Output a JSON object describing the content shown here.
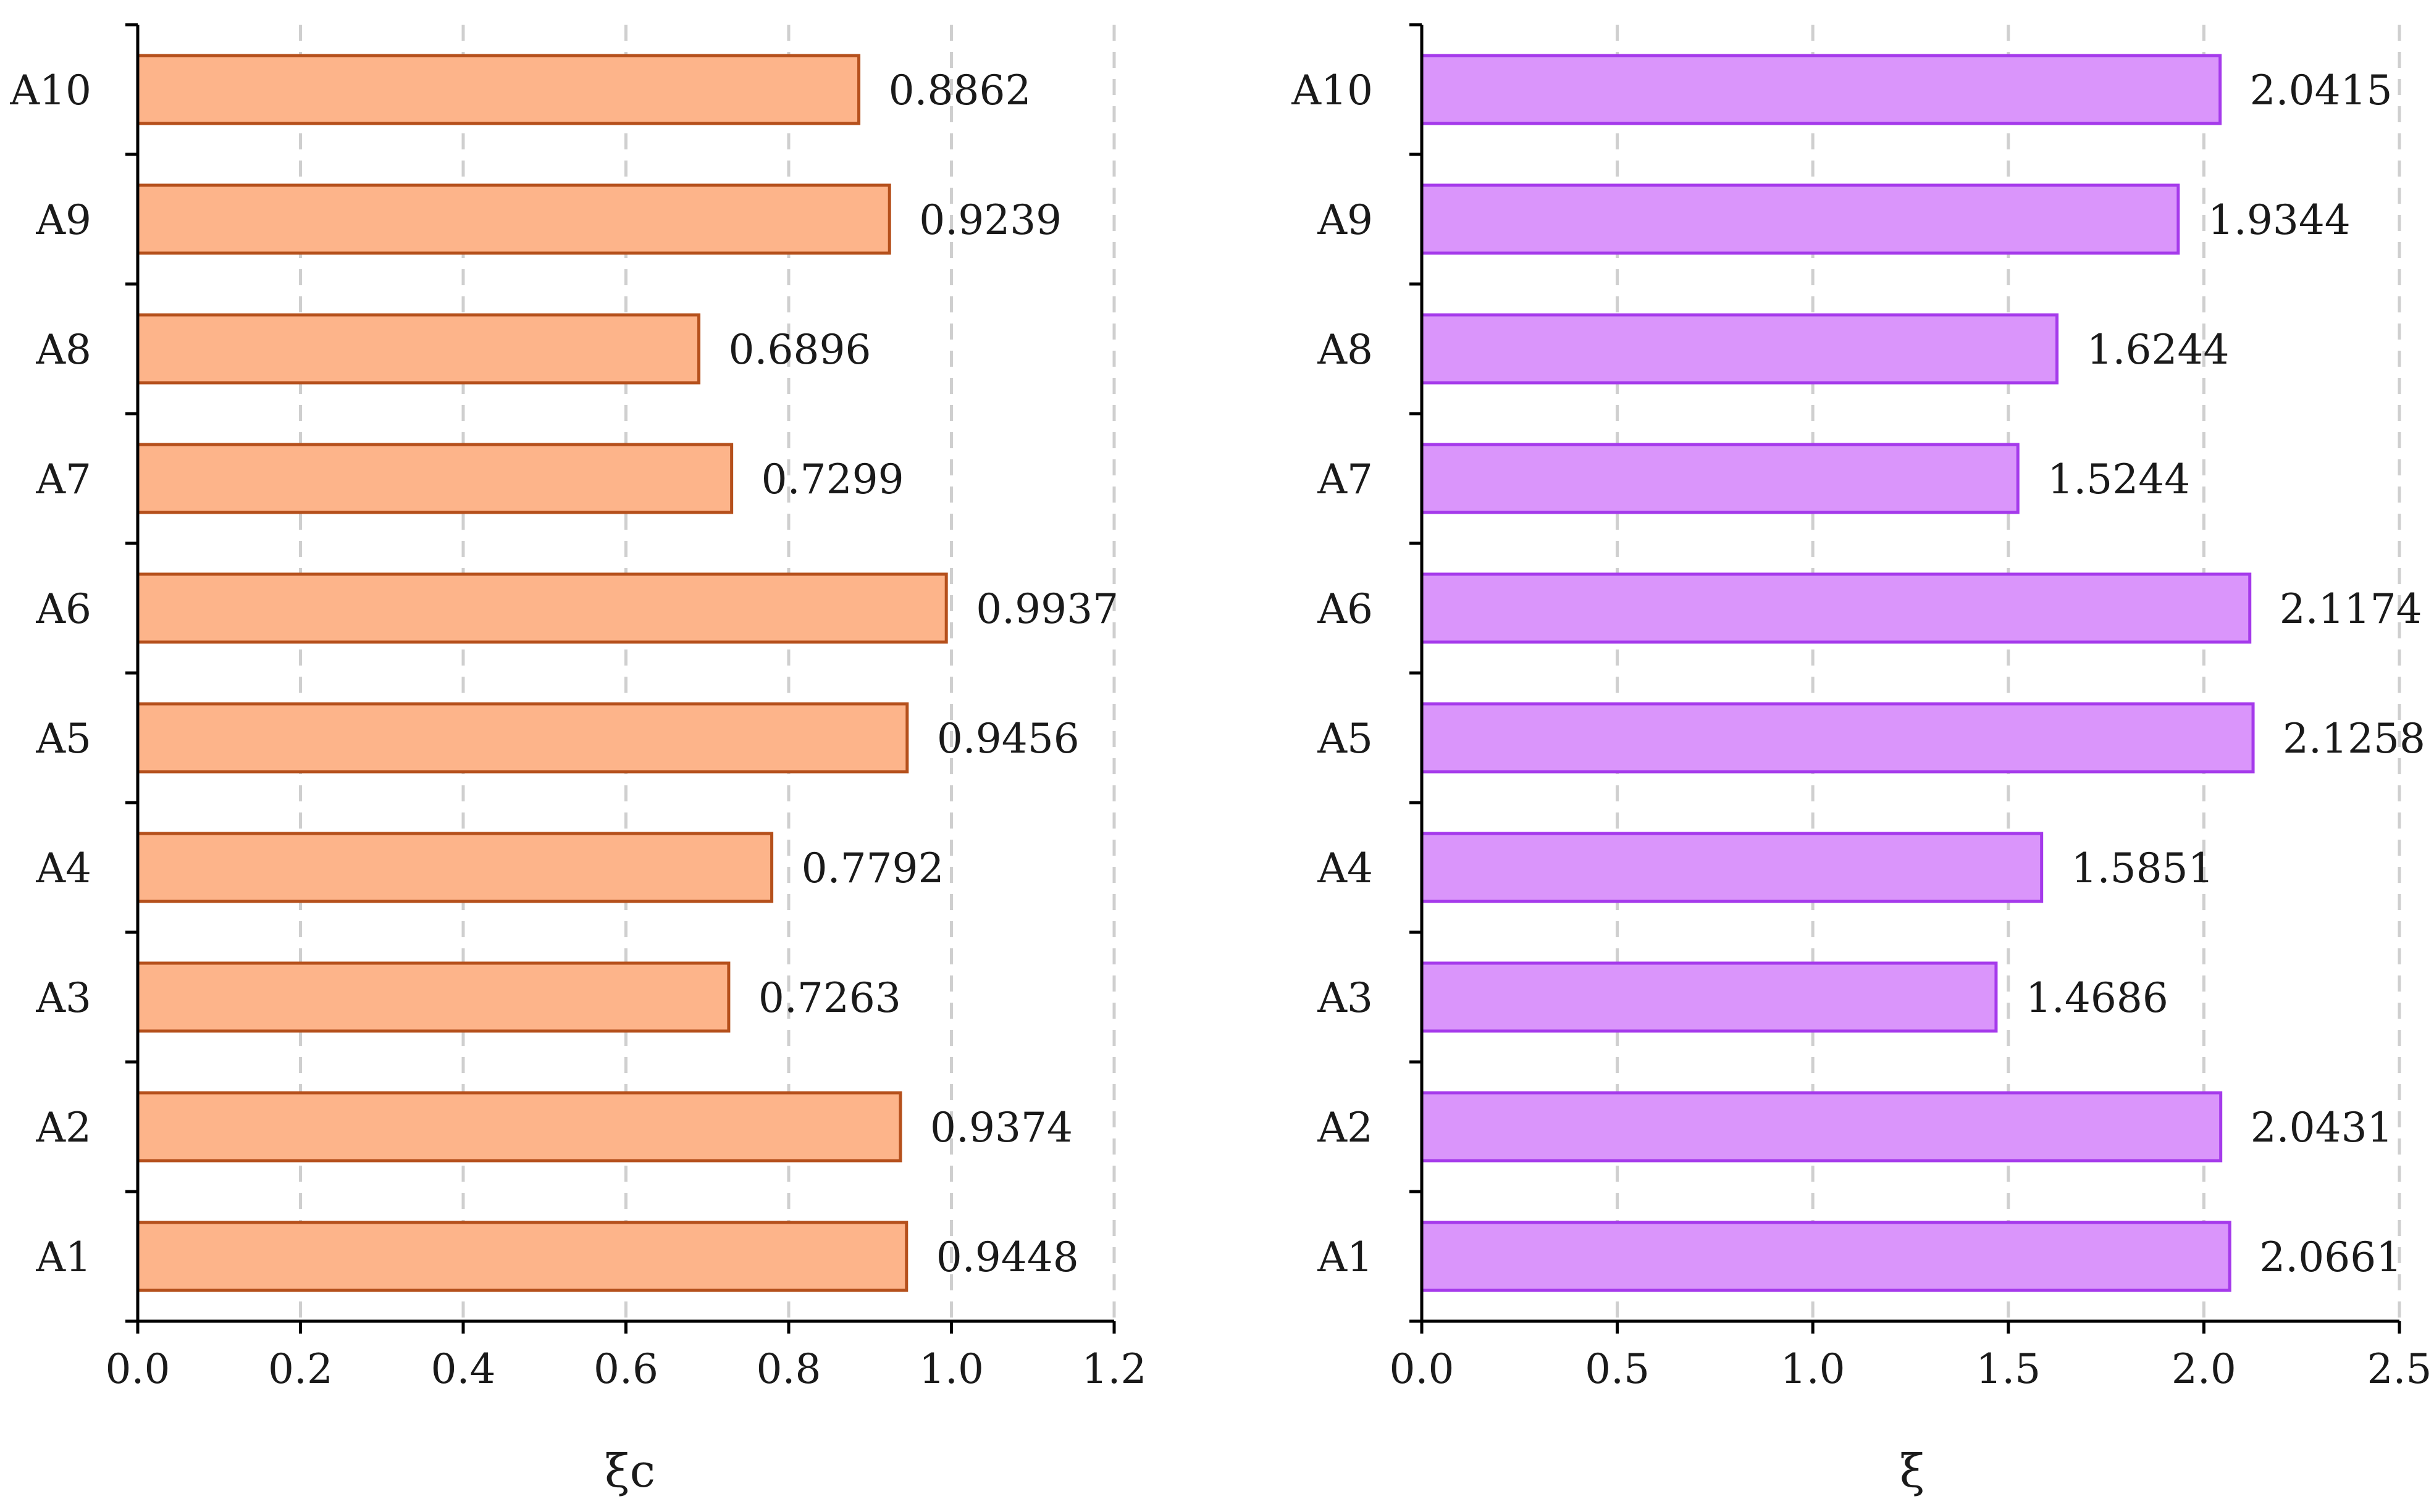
{
  "chart_data": [
    {
      "type": "bar",
      "orientation": "horizontal",
      "categories": [
        "A1",
        "A2",
        "A3",
        "A4",
        "A5",
        "A6",
        "A7",
        "A8",
        "A9",
        "A10"
      ],
      "values": [
        0.9448,
        0.9374,
        0.7263,
        0.7792,
        0.9456,
        0.9937,
        0.7299,
        0.6896,
        0.9239,
        0.8862
      ],
      "value_labels": [
        "0.9448",
        "0.9374",
        "0.7263",
        "0.7792",
        "0.9456",
        "0.9937",
        "0.7299",
        "0.6896",
        "0.9239",
        "0.8862"
      ],
      "xlabel": "ξc",
      "ylabel": "",
      "title": "",
      "xlim": [
        0,
        1.2
      ],
      "xticks": [
        "0.0",
        "0.2",
        "0.4",
        "0.6",
        "0.8",
        "1.0",
        "1.2"
      ],
      "grid": "vertical dashed",
      "bar_fill": "#FDB48A",
      "bar_stroke": "#B5501C"
    },
    {
      "type": "bar",
      "orientation": "horizontal",
      "categories": [
        "A1",
        "A2",
        "A3",
        "A4",
        "A5",
        "A6",
        "A7",
        "A8",
        "A9",
        "A10"
      ],
      "values": [
        2.0661,
        2.0431,
        1.4686,
        1.5851,
        2.1258,
        2.1174,
        1.5244,
        1.6244,
        1.9344,
        2.0415
      ],
      "value_labels": [
        "2.0661",
        "2.0431",
        "1.4686",
        "1.5851",
        "2.1258",
        "2.1174",
        "1.5244",
        "1.6244",
        "1.9344",
        "2.0415"
      ],
      "xlabel": "ξ",
      "ylabel": "",
      "title": "",
      "xlim": [
        0,
        2.5
      ],
      "xticks": [
        "0.0",
        "0.5",
        "1.0",
        "1.5",
        "2.0",
        "2.5"
      ],
      "grid": "vertical dashed",
      "bar_fill": "#DA95FB",
      "bar_stroke": "#A53AEB"
    }
  ]
}
